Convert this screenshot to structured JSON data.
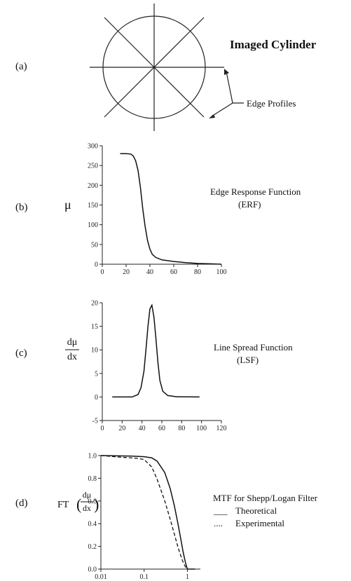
{
  "panel_a": {
    "label": "(a)",
    "title": "Imaged Cylinder",
    "annotation": "Edge Profiles"
  },
  "chart_data": [
    {
      "id": "b",
      "type": "line",
      "panel_label": "(b)",
      "ylabel": "μ",
      "annotation": [
        "Edge Response Function",
        "(ERF)"
      ],
      "xlim": [
        0,
        100
      ],
      "ylim": [
        0,
        300
      ],
      "xticks": [
        0,
        20,
        40,
        60,
        80,
        100
      ],
      "yticks": [
        0,
        50,
        100,
        150,
        200,
        250,
        300
      ],
      "series": [
        {
          "style": "solid",
          "x": [
            15,
            20,
            24,
            26,
            28,
            30,
            32,
            34,
            36,
            38,
            40,
            42,
            45,
            50,
            60,
            70,
            80,
            90,
            100
          ],
          "y": [
            280,
            280,
            279,
            274,
            262,
            238,
            195,
            140,
            95,
            60,
            38,
            25,
            17,
            11,
            7,
            4,
            2,
            1,
            0
          ]
        }
      ]
    },
    {
      "id": "c",
      "type": "line",
      "panel_label": "(c)",
      "ylabel_num": "dμ",
      "ylabel_den": "dx",
      "annotation": [
        "Line Spread Function",
        "(LSF)"
      ],
      "xlim": [
        0,
        120
      ],
      "ylim": [
        -5,
        20
      ],
      "xticks": [
        0,
        20,
        40,
        60,
        80,
        100,
        120
      ],
      "yticks": [
        -5,
        0,
        5,
        10,
        15,
        20
      ],
      "series": [
        {
          "style": "solid",
          "x": [
            10,
            30,
            36,
            39,
            42,
            44,
            46,
            48,
            50,
            52,
            54,
            56,
            58,
            61,
            66,
            75,
            98
          ],
          "y": [
            0,
            0,
            0.5,
            2,
            5.5,
            10,
            15,
            18.7,
            19.5,
            17,
            12.5,
            7.5,
            3.5,
            1.2,
            0.3,
            0.05,
            0
          ]
        }
      ]
    },
    {
      "id": "d",
      "type": "line",
      "panel_label": "(d)",
      "ylabel_prefix": "FT",
      "ylabel_num": "dμ",
      "ylabel_den": "dx",
      "annotation": [
        "MTF for Shepp/Logan Filter",
        "Theoretical",
        "Experimental"
      ],
      "legend_marks": [
        "___",
        "...."
      ],
      "xscale": "log",
      "xlim": [
        0.01,
        2
      ],
      "ylim": [
        0,
        1
      ],
      "xticks": [
        0.01,
        0.1,
        1
      ],
      "xtick_labels": [
        "0.01",
        "0.1",
        "1"
      ],
      "yticks": [
        0,
        0.2,
        0.4,
        0.6,
        0.8,
        1.0
      ],
      "ytick_labels": [
        "0.0",
        "0.2",
        "0.4",
        "0.6",
        "0.8",
        "1.0"
      ],
      "series": [
        {
          "name": "Theoretical",
          "style": "solid",
          "x": [
            0.01,
            0.05,
            0.1,
            0.15,
            0.2,
            0.3,
            0.4,
            0.5,
            0.6,
            0.7,
            0.8,
            0.9,
            1.0,
            1.2,
            1.5
          ],
          "y": [
            1.0,
            0.995,
            0.99,
            0.98,
            0.95,
            0.85,
            0.71,
            0.56,
            0.41,
            0.27,
            0.15,
            0.06,
            0.0,
            0.0,
            0.0
          ]
        },
        {
          "name": "Experimental",
          "style": "dashed",
          "x": [
            0.01,
            0.03,
            0.07,
            0.1,
            0.15,
            0.2,
            0.3,
            0.4,
            0.5,
            0.6,
            0.7,
            0.8,
            0.9,
            1.0
          ],
          "y": [
            1.0,
            0.985,
            0.975,
            0.965,
            0.9,
            0.79,
            0.6,
            0.44,
            0.31,
            0.2,
            0.12,
            0.06,
            0.02,
            0.0
          ]
        }
      ]
    }
  ]
}
